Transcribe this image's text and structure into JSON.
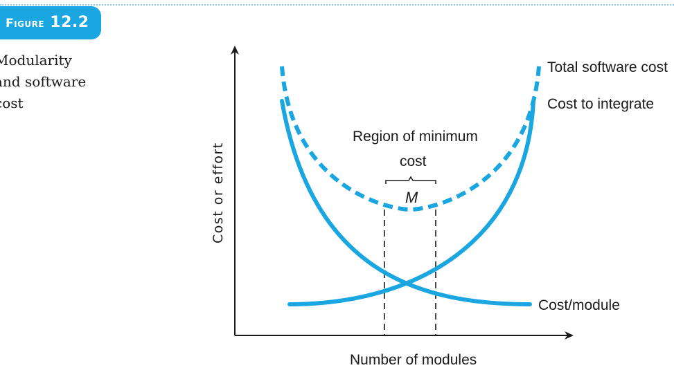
{
  "figure": {
    "number_prefix": "Figure",
    "number": "12.2",
    "caption": "Modularity\nand software\ncost"
  },
  "diagram": {
    "y_axis_label": "Cost or effort",
    "x_axis_label": "Number of modules",
    "region_label_line1": "Region of minimum",
    "region_label_line2": "cost",
    "region_marker": "M",
    "curves": [
      {
        "name": "Total software cost",
        "style": "dashed"
      },
      {
        "name": "Cost to integrate",
        "style": "solid"
      },
      {
        "name": "Cost/module",
        "style": "solid"
      }
    ],
    "colors": {
      "curve": "#1aa6e0",
      "axis": "#1a1a1a",
      "badge": "#1aa6e0"
    }
  }
}
